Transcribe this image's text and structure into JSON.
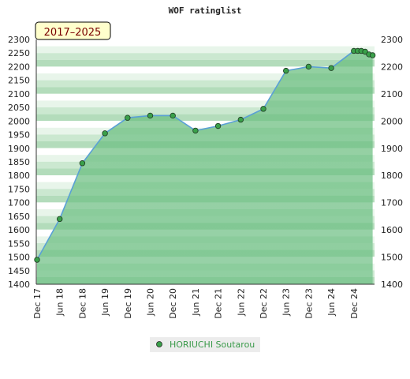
{
  "chart_data": {
    "type": "area",
    "title": "WOF ratinglist",
    "period_label": "2017–2025",
    "ylim": [
      1400,
      2300
    ],
    "y_ticks_left": [
      1400,
      1450,
      1500,
      1550,
      1600,
      1650,
      1700,
      1750,
      1800,
      1850,
      1900,
      1950,
      2000,
      2050,
      2100,
      2150,
      2200,
      2250,
      2300
    ],
    "y_ticks_right": [
      1400,
      1500,
      1600,
      1700,
      1800,
      1900,
      2000,
      2100,
      2200,
      2300
    ],
    "x_ticks": [
      "Dec 17",
      "Jun 18",
      "Dec 18",
      "Jun 19",
      "Dec 19",
      "Jun 20",
      "Dec 20",
      "Jun 21",
      "Dec 21",
      "Jun 22",
      "Dec 22",
      "Jun 23",
      "Dec 23",
      "Jun 24",
      "Dec 24"
    ],
    "series": [
      {
        "name": "HORIUCHI Soutarou",
        "color": "#3aa04a",
        "x": [
          0,
          1,
          2,
          3,
          4,
          5,
          6,
          7,
          8,
          9,
          10,
          11,
          12,
          13,
          14,
          14.17,
          14.33,
          14.5,
          14.67,
          14.83
        ],
        "values": [
          1490,
          1640,
          1845,
          1955,
          2012,
          2020,
          2020,
          1965,
          1982,
          2005,
          2045,
          2185,
          2200,
          2195,
          2258,
          2258,
          2258,
          2255,
          2245,
          2242
        ]
      }
    ]
  }
}
